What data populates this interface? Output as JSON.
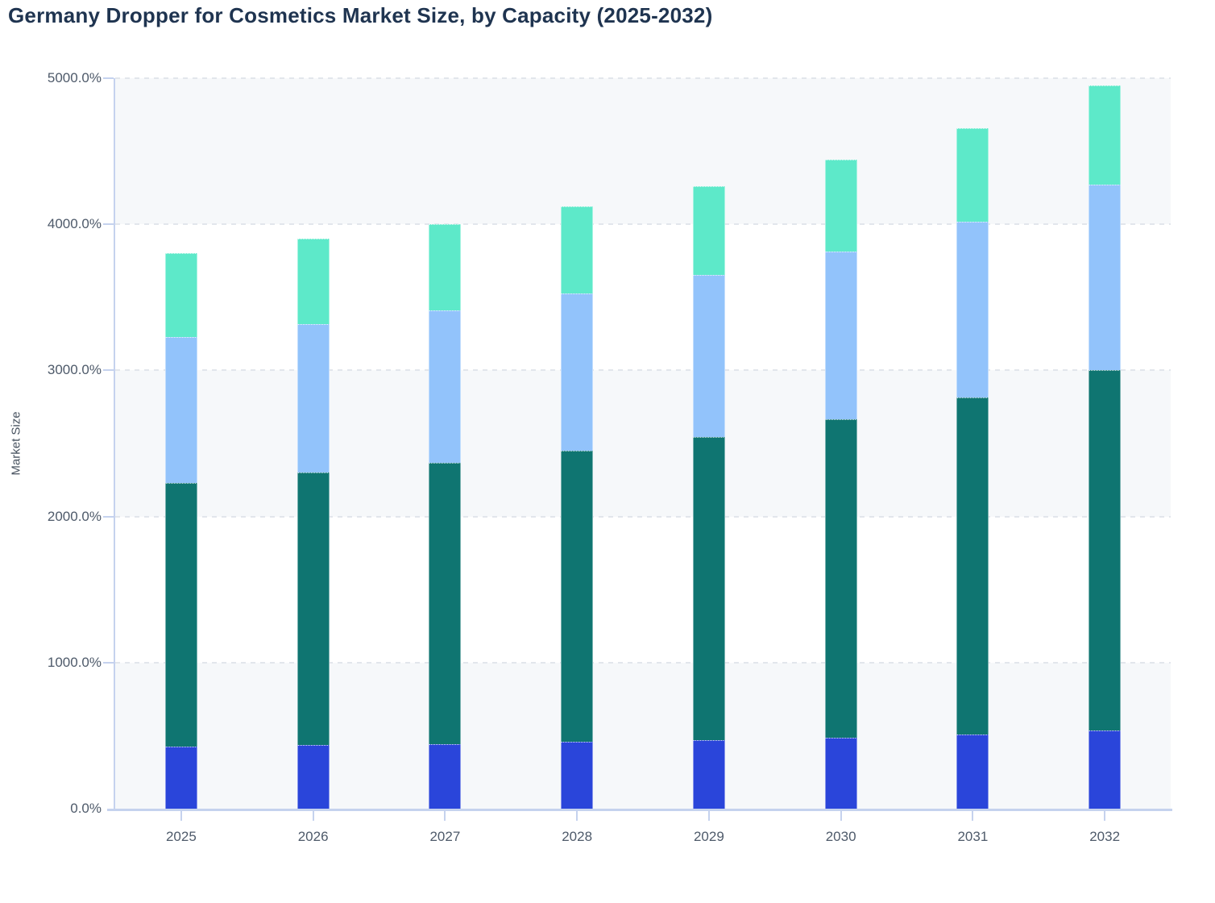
{
  "chart_data": {
    "type": "bar",
    "stacked": true,
    "title": "Germany Dropper for Cosmetics Market Size, by Capacity (2025-2032)",
    "xlabel": "",
    "ylabel": "Market Size",
    "categories": [
      "2025",
      "2026",
      "2027",
      "2028",
      "2029",
      "2030",
      "2031",
      "2032"
    ],
    "series": [
      {
        "name": "segment-royal-blue-bottom",
        "color": "#2a45da",
        "values": [
          423,
          434,
          443,
          456,
          470,
          485,
          505,
          538
        ]
      },
      {
        "name": "segment-teal",
        "color": "#0f7571",
        "values": [
          1809,
          1866,
          1927,
          1995,
          2074,
          2183,
          2310,
          2462
        ]
      },
      {
        "name": "segment-light-blue",
        "color": "#92c3fb",
        "values": [
          996,
          1018,
          1042,
          1075,
          1108,
          1146,
          1200,
          1272
        ]
      },
      {
        "name": "segment-mint-top",
        "color": "#5de9c9",
        "values": [
          575,
          583,
          588,
          594,
          610,
          629,
          643,
          680
        ]
      }
    ],
    "stack_totals": [
      3803,
      3901,
      4000,
      4120,
      4262,
      4443,
      4658,
      4952
    ],
    "ylim": [
      0,
      5000
    ],
    "y_axis": {
      "ticks": [
        {
          "value": 0,
          "label": "0.0%"
        },
        {
          "value": 1000,
          "label": "1000.0%"
        },
        {
          "value": 2000,
          "label": "2000.0%"
        },
        {
          "value": 3000,
          "label": "3000.0%"
        },
        {
          "value": 4000,
          "label": "4000.0%"
        },
        {
          "value": 5000,
          "label": "5000.0%"
        }
      ]
    },
    "grid": "horizontal-dashed",
    "legend": "none",
    "style": {
      "background": "#ffffff",
      "band_fill": "#f6f8fa",
      "gridline_color": "#e2e6ec",
      "axis_color": "#c5d2ee",
      "tick_text_color": "#4e5a6a",
      "title_color": "#1f3450"
    }
  }
}
